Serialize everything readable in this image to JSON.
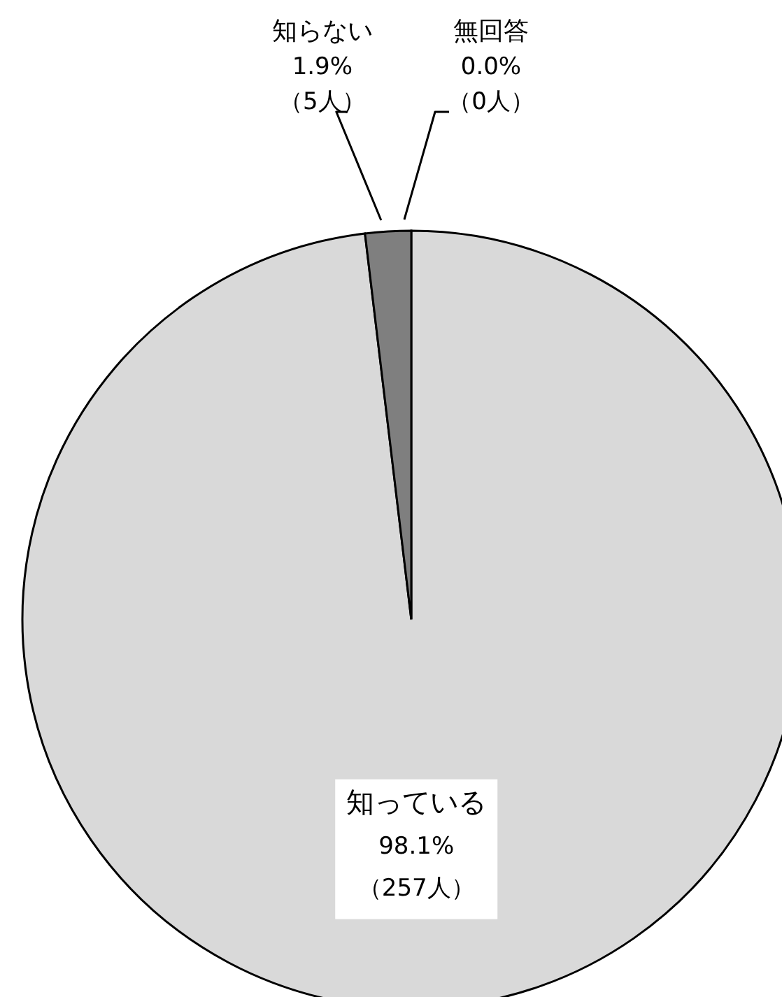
{
  "chart_data": {
    "type": "pie",
    "categories": [
      "知っている",
      "知らない",
      "無回答"
    ],
    "values": [
      98.1,
      1.9,
      0.0
    ],
    "colors": [
      "#d9d9d9",
      "#7f7f7f",
      "#ffffff"
    ],
    "value_labels": [
      "98.1%\n（257人）",
      "1.9%\n（5人）",
      "0.0%\n（0人）"
    ]
  }
}
